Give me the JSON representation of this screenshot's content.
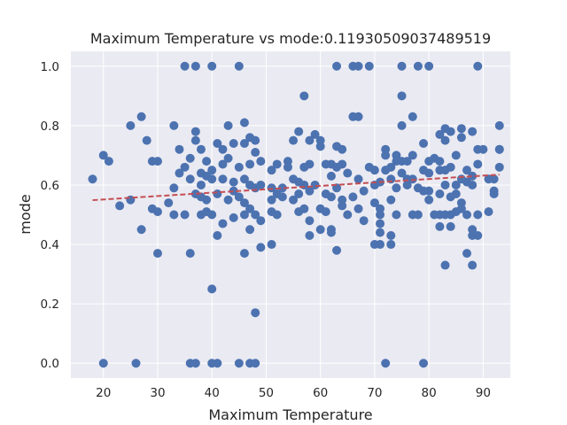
{
  "chart_data": {
    "type": "scatter",
    "title": "Maximum Temperature vs mode:0.11930509037489519",
    "xlabel": "Maximum Temperature",
    "ylabel": "mode",
    "xlim": [
      14,
      95
    ],
    "ylim": [
      -0.05,
      1.05
    ],
    "xticks": [
      20,
      30,
      40,
      50,
      60,
      70,
      80,
      90
    ],
    "yticks": [
      0.0,
      0.2,
      0.4,
      0.6,
      0.8,
      1.0
    ],
    "xtick_labels": [
      "20",
      "30",
      "40",
      "50",
      "60",
      "70",
      "80",
      "90"
    ],
    "ytick_labels": [
      "0.0",
      "0.2",
      "0.4",
      "0.6",
      "0.8",
      "1.0"
    ],
    "grid": true,
    "background_color": "#eaeaf2",
    "point_color": "#4c72b0",
    "trend_color": "#c44e52",
    "trend_line": {
      "x": [
        18,
        93
      ],
      "y": [
        0.549,
        0.635
      ]
    },
    "points": [
      [
        18,
        0.62
      ],
      [
        20,
        0.7
      ],
      [
        20,
        0.0
      ],
      [
        21,
        0.68
      ],
      [
        23,
        0.53
      ],
      [
        25,
        0.55
      ],
      [
        25,
        0.8
      ],
      [
        26,
        0.0
      ],
      [
        27,
        0.83
      ],
      [
        27,
        0.45
      ],
      [
        28,
        0.75
      ],
      [
        29,
        0.68
      ],
      [
        29,
        0.52
      ],
      [
        30,
        0.68
      ],
      [
        30,
        0.51
      ],
      [
        30,
        0.37
      ],
      [
        32,
        0.54
      ],
      [
        33,
        0.8
      ],
      [
        33,
        0.59
      ],
      [
        33,
        0.5
      ],
      [
        34,
        0.72
      ],
      [
        34,
        0.64
      ],
      [
        35,
        1.0
      ],
      [
        35,
        0.66
      ],
      [
        35,
        0.5
      ],
      [
        36,
        0.62
      ],
      [
        36,
        0.69
      ],
      [
        36,
        0.37
      ],
      [
        36,
        0.0
      ],
      [
        37,
        1.0
      ],
      [
        37,
        0.78
      ],
      [
        37,
        0.75
      ],
      [
        37,
        0.57
      ],
      [
        37,
        0.0
      ],
      [
        38,
        0.72
      ],
      [
        38,
        0.64
      ],
      [
        38,
        0.56
      ],
      [
        38,
        0.5
      ],
      [
        38,
        0.6
      ],
      [
        39,
        0.68
      ],
      [
        39,
        0.63
      ],
      [
        39,
        0.55
      ],
      [
        39,
        0.51
      ],
      [
        40,
        1.0
      ],
      [
        40,
        0.65
      ],
      [
        40,
        0.62
      ],
      [
        40,
        0.5
      ],
      [
        40,
        0.25
      ],
      [
        40,
        0.0
      ],
      [
        41,
        0.74
      ],
      [
        41,
        0.57
      ],
      [
        41,
        0.43
      ],
      [
        41,
        0.0
      ],
      [
        42,
        0.72
      ],
      [
        42,
        0.67
      ],
      [
        42,
        0.62
      ],
      [
        42,
        0.47
      ],
      [
        43,
        0.8
      ],
      [
        43,
        0.69
      ],
      [
        43,
        0.55
      ],
      [
        44,
        0.74
      ],
      [
        44,
        0.61
      ],
      [
        44,
        0.58
      ],
      [
        44,
        0.49
      ],
      [
        45,
        1.0
      ],
      [
        45,
        0.66
      ],
      [
        45,
        0.56
      ],
      [
        45,
        0.0
      ],
      [
        46,
        0.81
      ],
      [
        46,
        0.74
      ],
      [
        46,
        0.62
      ],
      [
        46,
        0.54
      ],
      [
        46,
        0.5
      ],
      [
        46,
        0.37
      ],
      [
        47,
        0.76
      ],
      [
        47,
        0.67
      ],
      [
        47,
        0.6
      ],
      [
        47,
        0.52
      ],
      [
        47,
        0.45
      ],
      [
        47,
        0.0
      ],
      [
        48,
        0.75
      ],
      [
        48,
        0.71
      ],
      [
        48,
        0.59
      ],
      [
        48,
        0.5
      ],
      [
        48,
        0.17
      ],
      [
        48,
        0.0
      ],
      [
        49,
        0.68
      ],
      [
        49,
        0.6
      ],
      [
        49,
        0.48
      ],
      [
        49,
        0.39
      ],
      [
        51,
        0.65
      ],
      [
        51,
        0.59
      ],
      [
        51,
        0.55
      ],
      [
        51,
        0.51
      ],
      [
        51,
        0.4
      ],
      [
        52,
        0.67
      ],
      [
        52,
        0.57
      ],
      [
        52,
        0.5
      ],
      [
        53,
        0.59
      ],
      [
        53,
        0.56
      ],
      [
        54,
        0.68
      ],
      [
        54,
        0.66
      ],
      [
        55,
        0.75
      ],
      [
        55,
        0.62
      ],
      [
        55,
        0.55
      ],
      [
        56,
        0.78
      ],
      [
        56,
        0.61
      ],
      [
        56,
        0.51
      ],
      [
        56,
        0.57
      ],
      [
        57,
        0.9
      ],
      [
        57,
        0.66
      ],
      [
        57,
        0.6
      ],
      [
        57,
        0.52
      ],
      [
        58,
        0.75
      ],
      [
        58,
        0.67
      ],
      [
        58,
        0.58
      ],
      [
        58,
        0.48
      ],
      [
        58,
        0.43
      ],
      [
        59,
        0.77
      ],
      [
        59,
        0.6
      ],
      [
        60,
        0.75
      ],
      [
        60,
        0.73
      ],
      [
        60,
        0.52
      ],
      [
        60,
        0.45
      ],
      [
        61,
        0.67
      ],
      [
        61,
        0.57
      ],
      [
        61,
        0.51
      ],
      [
        62,
        0.67
      ],
      [
        62,
        0.63
      ],
      [
        62,
        0.56
      ],
      [
        62,
        0.44
      ],
      [
        62,
        0.45
      ],
      [
        63,
        1.0
      ],
      [
        63,
        0.73
      ],
      [
        63,
        0.66
      ],
      [
        63,
        0.59
      ],
      [
        63,
        0.38
      ],
      [
        64,
        0.72
      ],
      [
        64,
        0.67
      ],
      [
        64,
        0.55
      ],
      [
        64,
        0.53
      ],
      [
        65,
        0.64
      ],
      [
        65,
        0.5
      ],
      [
        66,
        0.83
      ],
      [
        66,
        1.0
      ],
      [
        66,
        0.56
      ],
      [
        67,
        1.0
      ],
      [
        67,
        0.83
      ],
      [
        67,
        0.62
      ],
      [
        67,
        0.52
      ],
      [
        68,
        0.58
      ],
      [
        68,
        0.48
      ],
      [
        69,
        1.0
      ],
      [
        69,
        0.66
      ],
      [
        70,
        0.65
      ],
      [
        70,
        0.6
      ],
      [
        70,
        0.54
      ],
      [
        70,
        0.4
      ],
      [
        71,
        0.61
      ],
      [
        71,
        0.52
      ],
      [
        71,
        0.5
      ],
      [
        71,
        0.47
      ],
      [
        71,
        0.44
      ],
      [
        71,
        0.4
      ],
      [
        72,
        0.72
      ],
      [
        72,
        0.7
      ],
      [
        72,
        0.65
      ],
      [
        72,
        0.0
      ],
      [
        73,
        0.66
      ],
      [
        73,
        0.62
      ],
      [
        73,
        0.55
      ],
      [
        73,
        0.43
      ],
      [
        73,
        0.4
      ],
      [
        74,
        0.7
      ],
      [
        74,
        0.68
      ],
      [
        74,
        0.59
      ],
      [
        74,
        0.5
      ],
      [
        75,
        1.0
      ],
      [
        75,
        0.9
      ],
      [
        75,
        0.8
      ],
      [
        75,
        0.68
      ],
      [
        75,
        0.64
      ],
      [
        76,
        0.68
      ],
      [
        76,
        0.62
      ],
      [
        76,
        0.6
      ],
      [
        77,
        0.83
      ],
      [
        77,
        0.7
      ],
      [
        77,
        0.62
      ],
      [
        77,
        0.5
      ],
      [
        78,
        1.0
      ],
      [
        78,
        0.59
      ],
      [
        78,
        0.5
      ],
      [
        79,
        0.74
      ],
      [
        79,
        0.65
      ],
      [
        79,
        0.58
      ],
      [
        79,
        0.0
      ],
      [
        80,
        1.0
      ],
      [
        80,
        0.68
      ],
      [
        80,
        0.64
      ],
      [
        80,
        0.58
      ],
      [
        80,
        0.55
      ],
      [
        81,
        0.69
      ],
      [
        81,
        0.5
      ],
      [
        82,
        0.77
      ],
      [
        82,
        0.68
      ],
      [
        82,
        0.65
      ],
      [
        82,
        0.57
      ],
      [
        82,
        0.5
      ],
      [
        82,
        0.46
      ],
      [
        83,
        0.79
      ],
      [
        83,
        0.75
      ],
      [
        83,
        0.65
      ],
      [
        83,
        0.6
      ],
      [
        83,
        0.5
      ],
      [
        83,
        0.33
      ],
      [
        84,
        0.78
      ],
      [
        84,
        0.66
      ],
      [
        84,
        0.56
      ],
      [
        84,
        0.5
      ],
      [
        84,
        0.46
      ],
      [
        85,
        0.7
      ],
      [
        85,
        0.6
      ],
      [
        85,
        0.57
      ],
      [
        85,
        0.51
      ],
      [
        86,
        0.79
      ],
      [
        86,
        0.76
      ],
      [
        86,
        0.62
      ],
      [
        86,
        0.54
      ],
      [
        86,
        0.52
      ],
      [
        87,
        0.65
      ],
      [
        87,
        0.61
      ],
      [
        87,
        0.5
      ],
      [
        87,
        0.37
      ],
      [
        88,
        0.78
      ],
      [
        88,
        0.63
      ],
      [
        88,
        0.6
      ],
      [
        88,
        0.45
      ],
      [
        88,
        0.43
      ],
      [
        88,
        0.33
      ],
      [
        89,
        1.0
      ],
      [
        89,
        0.72
      ],
      [
        89,
        0.67
      ],
      [
        89,
        0.5
      ],
      [
        89,
        0.43
      ],
      [
        90,
        0.72
      ],
      [
        91,
        0.62
      ],
      [
        91,
        0.51
      ],
      [
        92,
        0.62
      ],
      [
        92,
        0.58
      ],
      [
        92,
        0.57
      ],
      [
        93,
        0.8
      ],
      [
        93,
        0.72
      ],
      [
        93,
        0.72
      ],
      [
        93,
        0.66
      ]
    ]
  }
}
